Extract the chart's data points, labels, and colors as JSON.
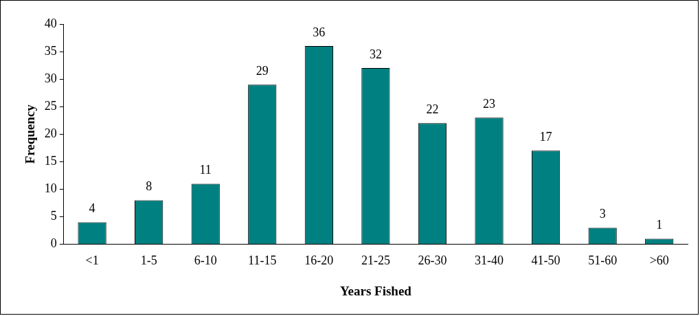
{
  "chart_data": {
    "type": "bar",
    "xlabel": "Years Fished",
    "ylabel": "Frequency",
    "categories": [
      "<1",
      "1-5",
      "6-10",
      "11-15",
      "16-20",
      "21-25",
      "26-30",
      "31-40",
      "41-50",
      "51-60",
      ">60"
    ],
    "values": [
      4,
      8,
      11,
      29,
      36,
      32,
      22,
      23,
      17,
      3,
      1
    ],
    "color": "#008080",
    "ylim": [
      0,
      40
    ],
    "yticks": [
      0,
      5,
      10,
      15,
      20,
      25,
      30,
      35,
      40
    ],
    "grid": false,
    "legend": false,
    "data_labels": true
  }
}
